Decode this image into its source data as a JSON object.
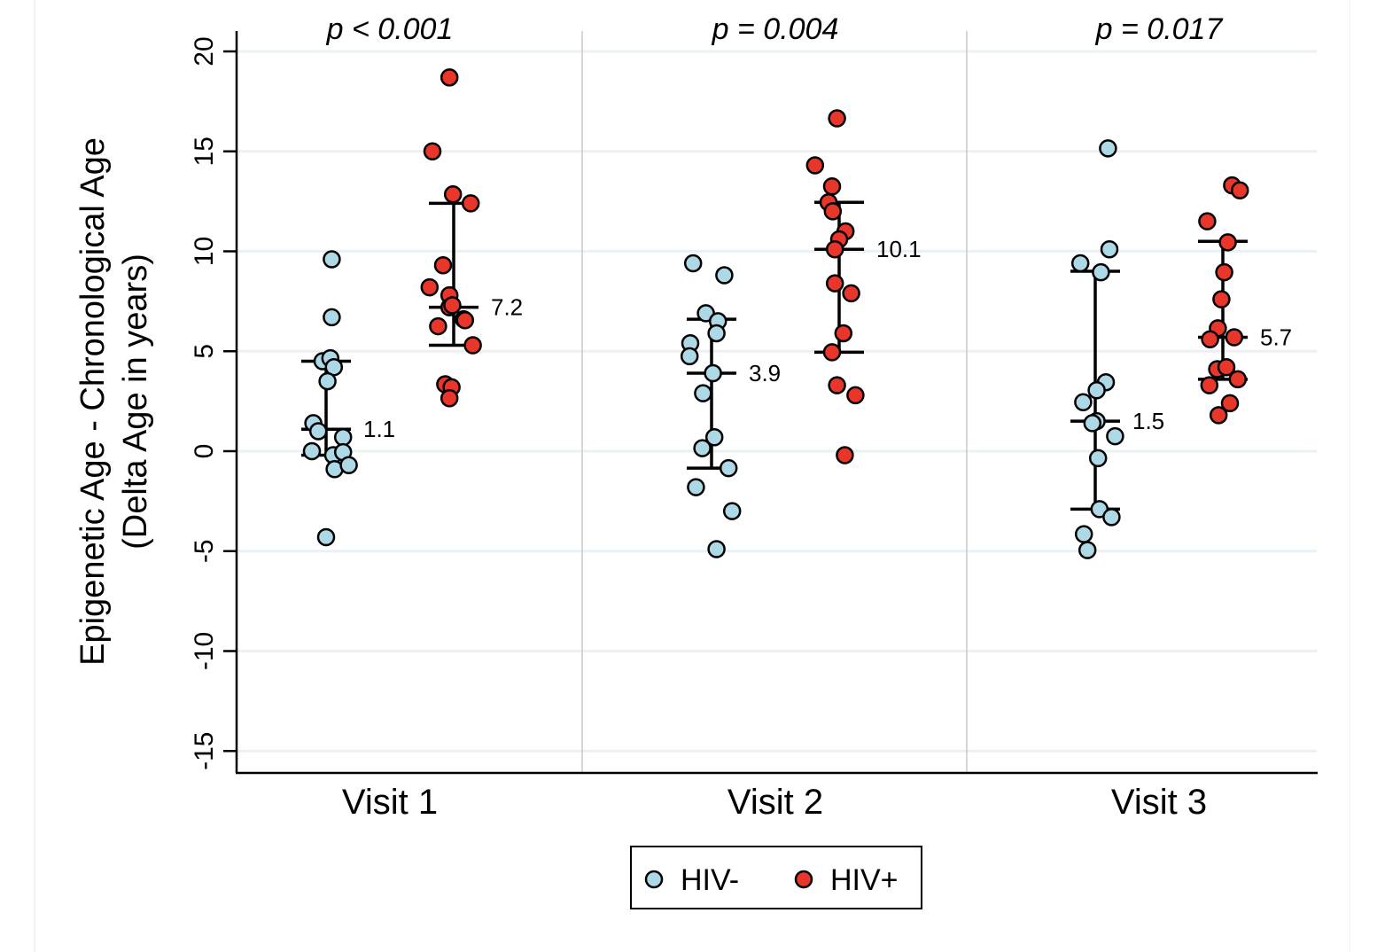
{
  "chart_data": {
    "type": "scatter",
    "title": "",
    "xlabel": "",
    "ylabel": [
      "Epigenetic Age - Chronological Age",
      "(Delta Age in years)"
    ],
    "ylim": [
      -16,
      21
    ],
    "yticks": [
      20,
      15,
      10,
      5,
      0,
      -5,
      -10,
      -15
    ],
    "ytick_labels": [
      "20",
      "15",
      "10",
      "5",
      "0",
      "-5",
      "-10",
      "-15"
    ],
    "grid": true,
    "categories": [
      "Visit 1",
      "Visit 2",
      "Visit 3"
    ],
    "annotations": [
      "p < 0.001",
      "p = 0.004",
      "p = 0.017"
    ],
    "legend": {
      "placement": "bottom-center",
      "entries": [
        "HIV-",
        "HIV+"
      ]
    },
    "series": [
      {
        "name": "HIV-",
        "color": "#add8e6",
        "groups": [
          {
            "category": "Visit 1",
            "median": 1.1,
            "q1": -0.2,
            "q3": 4.5,
            "median_label": "1.1",
            "values": [
              9.6,
              6.7,
              4.5,
              4.65,
              4.2,
              3.5,
              1.4,
              1.0,
              0.7,
              0.0,
              -0.2,
              -0.05,
              -0.9,
              -0.7,
              -4.3
            ],
            "jitter": [
              0.4,
              0.4,
              -0.25,
              0.3,
              0.55,
              0.1,
              -0.9,
              -0.55,
              1.2,
              -1.0,
              0.5,
              1.2,
              0.6,
              1.6,
              0.0
            ]
          },
          {
            "category": "Visit 2",
            "median": 3.9,
            "q1": -0.85,
            "q3": 6.6,
            "median_label": "3.9",
            "values": [
              9.4,
              8.8,
              6.9,
              6.5,
              5.9,
              5.4,
              4.75,
              3.9,
              2.9,
              0.7,
              0.15,
              -0.85,
              -1.8,
              -3.0,
              -4.9
            ],
            "jitter": [
              -1.3,
              0.9,
              -0.4,
              0.45,
              0.35,
              -1.5,
              -1.55,
              0.1,
              -0.6,
              0.2,
              -0.65,
              1.2,
              -1.1,
              1.45,
              0.35
            ]
          },
          {
            "category": "Visit 3",
            "median": 1.5,
            "q1": -2.9,
            "q3": 9.0,
            "median_label": "1.5",
            "values": [
              15.15,
              10.1,
              9.4,
              8.95,
              3.45,
              3.05,
              2.45,
              1.5,
              1.4,
              0.75,
              -0.35,
              -2.9,
              -3.3,
              -4.15,
              -4.95
            ],
            "jitter": [
              0.9,
              1.0,
              -1.05,
              0.4,
              0.75,
              0.1,
              -0.85,
              0.1,
              -0.2,
              1.4,
              0.2,
              0.3,
              1.15,
              -0.8,
              -0.55
            ]
          }
        ]
      },
      {
        "name": "HIV+",
        "color": "#e8372a",
        "groups": [
          {
            "category": "Visit 1",
            "median": 7.2,
            "q1": 5.3,
            "q3": 12.4,
            "median_label": "7.2",
            "values": [
              18.7,
              15.0,
              12.85,
              12.4,
              9.3,
              8.2,
              7.8,
              7.2,
              7.3,
              6.6,
              6.55,
              6.25,
              5.3,
              3.35,
              3.2,
              2.65
            ],
            "jitter": [
              -0.3,
              -1.5,
              -0.05,
              1.2,
              -0.75,
              -1.7,
              -0.3,
              -0.3,
              -0.1,
              0.7,
              0.8,
              -1.1,
              1.35,
              -0.6,
              -0.15,
              -0.3
            ]
          },
          {
            "category": "Visit 2",
            "median": 10.1,
            "q1": 4.95,
            "q3": 12.45,
            "median_label": "10.1",
            "values": [
              16.65,
              14.3,
              13.25,
              12.45,
              12.0,
              11.0,
              10.6,
              10.1,
              8.4,
              7.9,
              5.9,
              4.95,
              3.3,
              2.8,
              -0.2
            ],
            "jitter": [
              -0.15,
              -1.7,
              -0.5,
              -0.75,
              -0.45,
              0.45,
              0.0,
              -0.3,
              -0.3,
              0.85,
              0.3,
              -0.5,
              -0.15,
              1.15,
              0.4
            ]
          },
          {
            "category": "Visit 3",
            "median": 5.7,
            "q1": 3.6,
            "q3": 10.5,
            "median_label": "5.7",
            "values": [
              13.3,
              13.05,
              11.5,
              10.45,
              8.95,
              7.6,
              6.15,
              5.6,
              5.7,
              4.1,
              4.2,
              3.3,
              3.6,
              2.4,
              1.8
            ],
            "jitter": [
              0.65,
              1.2,
              -1.1,
              0.35,
              0.1,
              -0.1,
              -0.35,
              -0.9,
              0.8,
              -0.4,
              0.25,
              -0.95,
              1.05,
              0.5,
              -0.3
            ]
          }
        ]
      }
    ]
  }
}
